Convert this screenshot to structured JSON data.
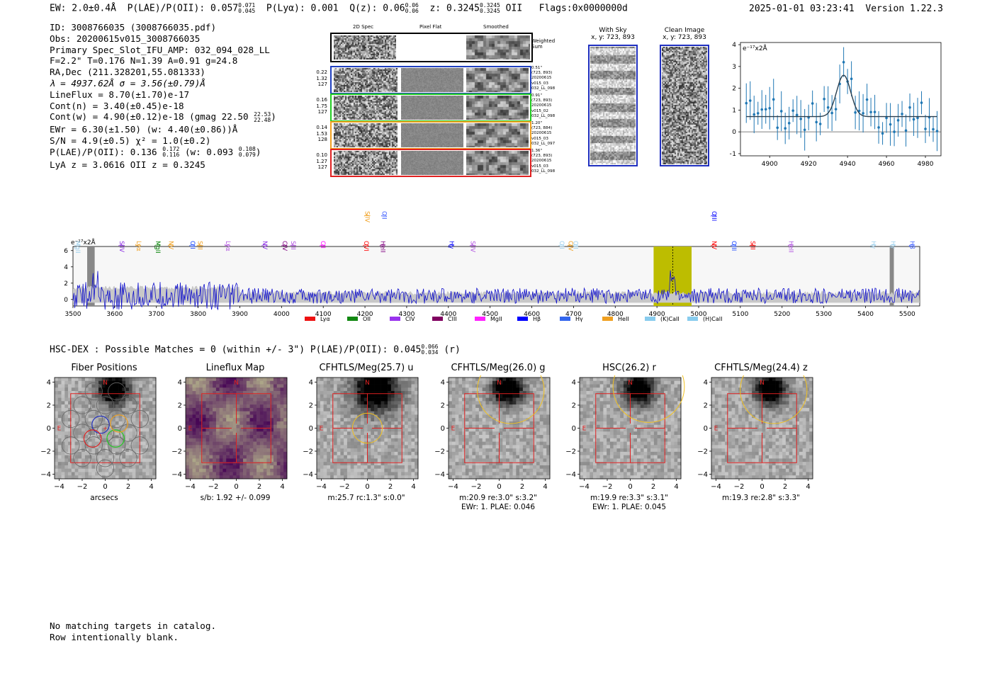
{
  "header": {
    "ew": "EW: 2.0±0.4Å",
    "plae_label": "P(LAE)/P(OII):",
    "plae_value": "0.057",
    "plae_hi": "0.071",
    "plae_lo": "0.045",
    "plya": "P(Lyα): 0.001",
    "qz_label": "Q(z):",
    "qz_value": "0.06",
    "qz_hi": "0.06",
    "qz_lo": "0.06",
    "z_label": "z:",
    "z_value": "0.3245",
    "z_hi": "0.3245",
    "z_lo": "0.3245",
    "z_line": "OII",
    "flags": "Flags:0x0000000d",
    "timestamp": "2025-01-01 03:23:41",
    "version": "Version 1.22.3"
  },
  "info": {
    "id": "ID: 3008766035 (3008766035.pdf)",
    "obs": "Obs: 20200615v015_3008766035",
    "primary": "Primary Spec_Slot_IFU_AMP: 032_094_028_LL",
    "fline": "F=2.2\"  T=0.176  N=1.39  A=0.91  g=24.8",
    "radec": "RA,Dec (211.328201,55.081333)",
    "lambda": "λ = 4937.62Å  σ = 3.56(±0.79)Å",
    "lineflux": "LineFlux = 8.70(±1.70)e-17",
    "contn": "Cont(n) = 3.40(±0.45)e-18",
    "contw": "Cont(w) = 4.90(±0.12)e-18 (gmag 22.50",
    "contw_hi": "22.53",
    "contw_lo": "22.48",
    "contw_end": ")",
    "ewr": "EWr = 6.30(±1.50) (w: 4.40(±0.86))Å",
    "sn": "S/N = 4.9(±0.5)  χ² = 1.0(±0.2)",
    "plae2": "P(LAE)/P(OII): 0.136",
    "plae2_hi": "0.172",
    "plae2_lo": "0.116",
    "plae2_w": "(w: 0.093",
    "plae2_w_hi": "0.108",
    "plae2_w_lo": "0.079",
    "plae2_end": ")",
    "lya": "LyA z = 3.0616  OII z = 0.3245"
  },
  "cutouts": {
    "col_headers": [
      "2D Spec",
      "Pixel Flat",
      "Smoothed"
    ],
    "weighted_label": "Weighted\nSum",
    "rows": [
      {
        "left": [
          "0.22",
          "1.32",
          "127"
        ],
        "right": [
          "0.51\"",
          "(723, 893)",
          "20200615",
          "v015_03",
          "032_LL_098"
        ],
        "color": "#1f3fbf"
      },
      {
        "left": [
          "0.16",
          "1.75",
          "127"
        ],
        "right": [
          "0.91\"",
          "(723, 893)",
          "20200615",
          "v015_02",
          "032_LL_098"
        ],
        "color": "#22cc22"
      },
      {
        "left": [
          "0.14",
          "1.53",
          "128"
        ],
        "right": [
          "1.20\"",
          "(723, 884)",
          "20200615",
          "v015_03",
          "032_LL_097"
        ],
        "color": "#f0a020"
      },
      {
        "left": [
          "0.10",
          "1.27",
          "127"
        ],
        "right": [
          "1.36\"",
          "(723, 893)",
          "20200615",
          "v015_03",
          "032_LL_098"
        ],
        "color": "#e02020"
      }
    ],
    "with_sky_title": "With Sky",
    "with_sky_xy": "x, y: 723, 893",
    "clean_title": "Clean Image",
    "clean_xy": "x, y: 723, 893"
  },
  "fitplot": {
    "unit": "e⁻¹⁷x2Å",
    "xticks": [
      "4900",
      "4920",
      "4940",
      "4960",
      "4980"
    ],
    "yticks": [
      "4",
      "3",
      "2",
      "1",
      "0",
      "−1"
    ]
  },
  "spectrum": {
    "unit": "e⁻¹⁷x2Å",
    "xticks": [
      "3500",
      "3600",
      "3700",
      "3800",
      "3900",
      "4000",
      "4100",
      "4200",
      "4300",
      "4400",
      "4500",
      "4600",
      "4700",
      "4800",
      "4900",
      "5000",
      "5100",
      "5200",
      "5300",
      "5400",
      "5500"
    ],
    "yticks": [
      "6",
      "4",
      "2",
      "0"
    ],
    "lines": [
      {
        "label": "MgII",
        "color": "#9cd0ee",
        "w": 3512
      },
      {
        "label": "SiIV",
        "color": "#8a2be2",
        "w": 3617
      },
      {
        "label": "Lyα",
        "color": "#f0a020",
        "w": 3658
      },
      {
        "label": "MgII",
        "color": "#008000",
        "w": 3704
      },
      {
        "label": "NV",
        "color": "#f0a020",
        "w": 3735
      },
      {
        "label": "OII",
        "color": "#1040ff",
        "w": 3787
      },
      {
        "label": "SiII",
        "color": "#f0a020",
        "w": 3805
      },
      {
        "label": "Lyα",
        "color": "#b050e0",
        "w": 3872
      },
      {
        "label": "NV",
        "color": "#8a2be2",
        "w": 3960
      },
      {
        "label": "CIV",
        "color": "#800080",
        "w": 4008
      },
      {
        "label": "SiII",
        "color": "#b050e0",
        "w": 4028
      },
      {
        "label": "CII",
        "color": "#ff00ff",
        "w": 4100
      },
      {
        "label": "OVI",
        "color": "#ff0000",
        "w": 4203
      },
      {
        "label": "SiIV",
        "color": "#f0a020",
        "w": 4206
      },
      {
        "label": "HeII",
        "color": "#800080",
        "w": 4243
      },
      {
        "label": "OII",
        "color": "#4060ff",
        "w": 4247
      },
      {
        "label": "Hγ",
        "color": "#0000ff",
        "w": 4408
      },
      {
        "label": "SiIV",
        "color": "#b050e0",
        "w": 4459
      },
      {
        "label": "OII",
        "color": "#9cd0ee",
        "w": 4672
      },
      {
        "label": "CIV",
        "color": "#f0a020",
        "w": 4693
      },
      {
        "label": "OII",
        "color": "#9cd0ee",
        "w": 4705
      },
      {
        "label": "OIII",
        "color": "#0000ff",
        "w": 5037
      },
      {
        "label": "NV",
        "color": "#ff0000",
        "w": 5037
      },
      {
        "label": "OIII",
        "color": "#1040ff",
        "w": 5085
      },
      {
        "label": "SiII",
        "color": "#ff0000",
        "w": 5130
      },
      {
        "label": "HeII",
        "color": "#b050e0",
        "w": 5222
      },
      {
        "label": "Hγ",
        "color": "#9cd0ee",
        "w": 5420
      },
      {
        "label": "Hγ",
        "color": "#9cd0ee",
        "w": 5466
      },
      {
        "label": "Hβ",
        "color": "#4060ff",
        "w": 5512
      }
    ],
    "legend": [
      {
        "label": "Lyα",
        "color": "#ee1111"
      },
      {
        "label": "OII",
        "color": "#118811"
      },
      {
        "label": "CIV",
        "color": "#9933ee"
      },
      {
        "label": "CIII",
        "color": "#800060"
      },
      {
        "label": "MgII",
        "color": "#ff22ff"
      },
      {
        "label": "Hβ",
        "color": "#0000ff"
      },
      {
        "label": "Hγ",
        "color": "#3366ee"
      },
      {
        "label": "HeII",
        "color": "#f0a020"
      },
      {
        "label": "(K)CaII",
        "color": "#88ccee"
      },
      {
        "label": "(H)CaII",
        "color": "#88ccee"
      }
    ]
  },
  "hsc": {
    "line": "HSC-DEX : Possible Matches = 0 (within +/- 3\")  P(LAE)/P(OII): 0.045",
    "hi": "0.066",
    "lo": "0.034",
    "end": "(r)"
  },
  "panels": [
    {
      "title": "Fiber Positions",
      "cap1": "arcsecs",
      "cap2": ""
    },
    {
      "title": "Lineflux Map",
      "cap1": "s/b: 1.92 +/- 0.099",
      "cap2": ""
    },
    {
      "title": "CFHTLS/Meg(25.7) u",
      "cap1": "m:25.7 rc:1.3\"  s:0.0\"",
      "cap2": ""
    },
    {
      "title": "CFHTLS/Meg(26.0) g",
      "cap1": "m:20.9  re:3.0\"  s:3.2\"",
      "cap2": "EWr: 1. PLAE: 0.046"
    },
    {
      "title": "HSC(26.2) r",
      "cap1": "m:19.9  re:3.3\"  s:3.1\"",
      "cap2": "EWr: 1. PLAE: 0.045"
    },
    {
      "title": "CFHTLS/Meg(24.4) z",
      "cap1": "m:19.3  re:2.8\"  s:3.3\"",
      "cap2": ""
    }
  ],
  "panel_axes": {
    "yticks": [
      "4",
      "2",
      "0",
      "−2",
      "−4"
    ],
    "xticks": [
      "−4",
      "−2",
      "0",
      "2",
      "4"
    ],
    "north": "N",
    "east": "E"
  },
  "footer": {
    "line1": "No matching targets in catalog.",
    "line2": "Row intentionally blank."
  }
}
